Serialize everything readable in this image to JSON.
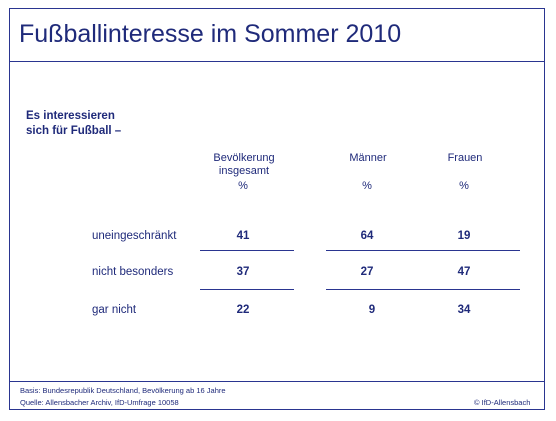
{
  "title": "Fußballinteresse im Sommer 2010",
  "chart_data": {
    "type": "table",
    "question": [
      "Es interessieren",
      "sich für Fußball –"
    ],
    "columns": [
      {
        "name": [
          "Bevölkerung",
          "insgesamt"
        ],
        "unit": "%"
      },
      {
        "name": [
          "Männer"
        ],
        "unit": "%"
      },
      {
        "name": [
          "Frauen"
        ],
        "unit": "%"
      }
    ],
    "rows": [
      {
        "label": "uneingeschränkt",
        "values": [
          "41",
          "64",
          "19"
        ]
      },
      {
        "label": "nicht besonders",
        "values": [
          "37",
          "27",
          "47"
        ]
      },
      {
        "label": "gar nicht",
        "values": [
          "22",
          "9",
          "34"
        ]
      }
    ]
  },
  "footer": {
    "basis": "Basis: Bundesrepublik Deutschland, Bevölkerung ab 16 Jahre",
    "source": "Quelle: Allensbacher Archiv, IfD-Umfrage 10058",
    "copyright": "© IfD-Allensbach"
  },
  "colors": {
    "text": "#1f2a7a",
    "rule": "#2a3590",
    "background": "#ffffff"
  }
}
